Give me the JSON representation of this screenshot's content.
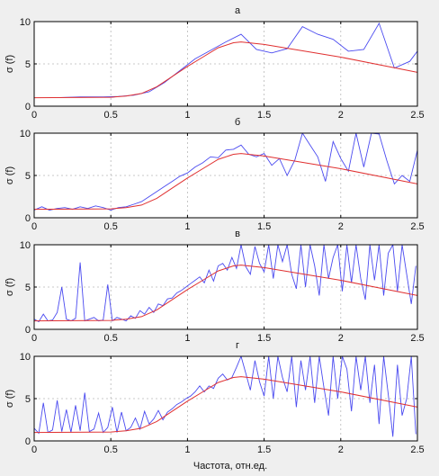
{
  "xlabel": "Частота, отн.ед.",
  "colors": {
    "measured": "#4a4af0",
    "model": "#e03030",
    "grid": "#b8b8b8",
    "axes_bg": "#ffffff",
    "figure_bg": "#efefef"
  },
  "chart_data": [
    {
      "type": "line",
      "title": "а",
      "ylabel": "σ (f)",
      "xlim": [
        0,
        2.5
      ],
      "ylim": [
        0,
        10
      ],
      "xticks": [
        0,
        0.5,
        1,
        1.5,
        2,
        2.5
      ],
      "yticks": [
        0,
        5,
        10
      ],
      "x_tick_labels": [
        "0",
        "0.5",
        "1",
        "1.5",
        "2",
        "2.5"
      ],
      "y_tick_labels": [
        "0",
        "5",
        "10"
      ],
      "grid": true,
      "series": [
        {
          "role": "measured",
          "x": [
            0.15,
            0.3,
            0.45,
            0.55,
            0.65,
            0.75,
            0.85,
            0.95,
            1.05,
            1.15,
            1.25,
            1.35,
            1.45,
            1.55,
            1.65,
            1.75,
            1.85,
            1.95,
            2.05,
            2.15,
            2.25,
            2.35,
            2.45,
            2.5
          ],
          "y": [
            1.0,
            1.1,
            1.1,
            1.15,
            1.3,
            1.7,
            2.8,
            4.2,
            5.6,
            6.6,
            7.6,
            8.5,
            6.7,
            6.3,
            6.8,
            9.4,
            8.5,
            7.9,
            6.5,
            6.7,
            9.8,
            4.5,
            5.3,
            6.5
          ]
        },
        {
          "role": "model",
          "x": [
            0,
            0.5,
            0.6,
            0.7,
            0.8,
            0.9,
            1.0,
            1.1,
            1.2,
            1.3,
            1.35,
            1.5,
            2.0,
            2.5
          ],
          "y": [
            1.0,
            1.05,
            1.2,
            1.5,
            2.3,
            3.5,
            4.7,
            5.8,
            6.9,
            7.5,
            7.6,
            7.3,
            5.8,
            4.0
          ]
        }
      ]
    },
    {
      "type": "line",
      "title": "б",
      "ylabel": "σ (f)",
      "xlim": [
        0,
        2.5
      ],
      "ylim": [
        0,
        10
      ],
      "xticks": [
        0,
        0.5,
        1,
        1.5,
        2,
        2.5
      ],
      "yticks": [
        0,
        5,
        10
      ],
      "x_tick_labels": [
        "0",
        "0.5",
        "1",
        "1.5",
        "2",
        "2.5"
      ],
      "y_tick_labels": [
        "0",
        "5",
        "10"
      ],
      "grid": true,
      "series": [
        {
          "role": "measured",
          "x": [
            0,
            0.05,
            0.1,
            0.15,
            0.2,
            0.25,
            0.3,
            0.35,
            0.4,
            0.45,
            0.5,
            0.55,
            0.6,
            0.65,
            0.7,
            0.75,
            0.8,
            0.85,
            0.9,
            0.95,
            1.0,
            1.05,
            1.1,
            1.15,
            1.2,
            1.25,
            1.3,
            1.35,
            1.4,
            1.45,
            1.5,
            1.55,
            1.6,
            1.65,
            1.7,
            1.75,
            1.8,
            1.85,
            1.9,
            1.95,
            2.0,
            2.05,
            2.1,
            2.15,
            2.2,
            2.25,
            2.3,
            2.35,
            2.4,
            2.45,
            2.5
          ],
          "y": [
            0.9,
            1.3,
            0.9,
            1.1,
            1.2,
            1.0,
            1.3,
            1.1,
            1.4,
            1.2,
            0.9,
            1.2,
            1.3,
            1.6,
            1.9,
            2.5,
            3.1,
            3.7,
            4.3,
            4.9,
            5.3,
            6.0,
            6.5,
            7.2,
            7.1,
            8.0,
            8.1,
            8.6,
            7.5,
            7.2,
            7.6,
            6.2,
            7.0,
            5.0,
            6.8,
            10.0,
            8.6,
            7.2,
            4.3,
            9.0,
            7.0,
            5.5,
            10.0,
            6.0,
            10.0,
            9.9,
            6.8,
            4.0,
            5.0,
            4.3,
            8.0
          ]
        },
        {
          "role": "model",
          "x": [
            0,
            0.5,
            0.6,
            0.7,
            0.8,
            0.9,
            1.0,
            1.1,
            1.2,
            1.3,
            1.35,
            1.5,
            2.0,
            2.5
          ],
          "y": [
            1.0,
            1.05,
            1.2,
            1.5,
            2.3,
            3.5,
            4.7,
            5.8,
            6.9,
            7.5,
            7.6,
            7.3,
            5.8,
            4.0
          ]
        }
      ]
    },
    {
      "type": "line",
      "title": "в",
      "ylabel": "σ (f)",
      "xlim": [
        0,
        2.5
      ],
      "ylim": [
        0,
        10
      ],
      "xticks": [
        0,
        0.5,
        1,
        1.5,
        2,
        2.5
      ],
      "yticks": [
        0,
        5,
        10
      ],
      "x_tick_labels": [
        "0",
        "0.5",
        "1",
        "1.5",
        "2",
        "2.5"
      ],
      "y_tick_labels": [
        "0",
        "5",
        "10"
      ],
      "grid": true,
      "series": [
        {
          "role": "measured",
          "x": [
            0,
            0.03,
            0.06,
            0.09,
            0.12,
            0.15,
            0.18,
            0.21,
            0.24,
            0.27,
            0.3,
            0.33,
            0.36,
            0.39,
            0.42,
            0.45,
            0.48,
            0.51,
            0.54,
            0.57,
            0.6,
            0.63,
            0.66,
            0.69,
            0.72,
            0.75,
            0.78,
            0.81,
            0.84,
            0.87,
            0.9,
            0.93,
            0.96,
            0.99,
            1.02,
            1.05,
            1.08,
            1.11,
            1.14,
            1.17,
            1.2,
            1.23,
            1.26,
            1.29,
            1.32,
            1.35,
            1.38,
            1.41,
            1.44,
            1.47,
            1.5,
            1.53,
            1.56,
            1.59,
            1.62,
            1.65,
            1.68,
            1.71,
            1.74,
            1.77,
            1.8,
            1.83,
            1.86,
            1.89,
            1.92,
            1.95,
            1.98,
            2.01,
            2.04,
            2.07,
            2.1,
            2.13,
            2.16,
            2.19,
            2.22,
            2.25,
            2.28,
            2.31,
            2.34,
            2.37,
            2.4,
            2.43,
            2.46,
            2.49
          ],
          "y": [
            1.2,
            0.9,
            1.8,
            1.0,
            1.1,
            2.0,
            5.0,
            1.2,
            1.0,
            1.3,
            7.9,
            1.0,
            1.2,
            1.4,
            1.0,
            1.1,
            5.3,
            1.0,
            1.4,
            1.2,
            1.0,
            1.6,
            1.3,
            2.2,
            1.8,
            2.6,
            2.0,
            3.0,
            2.8,
            3.6,
            3.7,
            4.3,
            4.6,
            5.0,
            5.4,
            5.8,
            6.2,
            5.5,
            7.0,
            5.7,
            7.5,
            7.8,
            7.0,
            8.5,
            7.2,
            10.0,
            7.4,
            6.5,
            9.8,
            7.8,
            6.8,
            10.0,
            6.0,
            10.0,
            8.0,
            10.0,
            6.5,
            4.8,
            10.0,
            5.0,
            10.0,
            7.5,
            4.0,
            10.0,
            6.0,
            8.5,
            10.0,
            4.5,
            10.0,
            5.5,
            10.0,
            6.0,
            3.5,
            10.0,
            5.8,
            10.0,
            4.0,
            9.0,
            10.0,
            4.5,
            10.0,
            6.5,
            3.0,
            7.5
          ]
        },
        {
          "role": "model",
          "x": [
            0,
            0.5,
            0.6,
            0.7,
            0.8,
            0.9,
            1.0,
            1.1,
            1.2,
            1.3,
            1.35,
            1.5,
            2.0,
            2.5
          ],
          "y": [
            1.0,
            1.05,
            1.2,
            1.5,
            2.3,
            3.5,
            4.7,
            5.8,
            6.9,
            7.5,
            7.6,
            7.3,
            5.8,
            4.0
          ]
        }
      ]
    },
    {
      "type": "line",
      "title": "г",
      "ylabel": "σ (f)",
      "xlim": [
        0,
        2.5
      ],
      "ylim": [
        0,
        10
      ],
      "xticks": [
        0,
        0.5,
        1,
        1.5,
        2,
        2.5
      ],
      "yticks": [
        0,
        5,
        10
      ],
      "x_tick_labels": [
        "0",
        "0.5",
        "1",
        "1.5",
        "2",
        "2.5"
      ],
      "y_tick_labels": [
        "0",
        "5",
        "10"
      ],
      "grid": true,
      "series": [
        {
          "role": "measured",
          "x": [
            0,
            0.03,
            0.06,
            0.09,
            0.12,
            0.15,
            0.18,
            0.21,
            0.24,
            0.27,
            0.3,
            0.33,
            0.36,
            0.39,
            0.42,
            0.45,
            0.48,
            0.51,
            0.54,
            0.57,
            0.6,
            0.63,
            0.66,
            0.69,
            0.72,
            0.75,
            0.78,
            0.81,
            0.84,
            0.87,
            0.9,
            0.93,
            0.96,
            0.99,
            1.02,
            1.05,
            1.08,
            1.11,
            1.14,
            1.17,
            1.2,
            1.23,
            1.26,
            1.29,
            1.32,
            1.35,
            1.38,
            1.41,
            1.44,
            1.47,
            1.5,
            1.53,
            1.56,
            1.59,
            1.62,
            1.65,
            1.68,
            1.71,
            1.74,
            1.77,
            1.8,
            1.83,
            1.86,
            1.89,
            1.92,
            1.95,
            1.98,
            2.01,
            2.04,
            2.07,
            2.1,
            2.13,
            2.16,
            2.19,
            2.22,
            2.25,
            2.28,
            2.31,
            2.34,
            2.37,
            2.4,
            2.43,
            2.46,
            2.49
          ],
          "y": [
            1.5,
            0.9,
            4.5,
            1.0,
            1.3,
            4.8,
            1.1,
            3.7,
            1.0,
            4.2,
            1.2,
            5.7,
            1.1,
            1.4,
            3.3,
            1.0,
            1.6,
            4.0,
            1.0,
            3.4,
            1.2,
            1.6,
            2.7,
            1.4,
            3.5,
            2.0,
            2.6,
            3.6,
            2.5,
            3.4,
            3.8,
            4.3,
            4.6,
            5.0,
            5.3,
            5.8,
            6.5,
            5.8,
            6.5,
            6.2,
            7.4,
            7.9,
            7.2,
            7.5,
            8.7,
            10.0,
            8.0,
            6.0,
            9.5,
            7.0,
            5.3,
            10.0,
            5.0,
            10.0,
            7.5,
            5.8,
            10.0,
            4.0,
            9.5,
            6.0,
            10.0,
            4.5,
            10.0,
            6.3,
            3.0,
            10.0,
            5.0,
            10.0,
            8.5,
            3.5,
            10.0,
            6.0,
            10.0,
            4.5,
            9.0,
            2.0,
            10.0,
            5.5,
            0.5,
            9.0,
            3.0,
            5.0,
            10.0,
            0.8
          ]
        },
        {
          "role": "model",
          "x": [
            0,
            0.5,
            0.6,
            0.7,
            0.8,
            0.9,
            1.0,
            1.1,
            1.2,
            1.3,
            1.35,
            1.5,
            2.0,
            2.5
          ],
          "y": [
            1.0,
            1.05,
            1.2,
            1.5,
            2.3,
            3.5,
            4.7,
            5.8,
            6.9,
            7.5,
            7.6,
            7.3,
            5.8,
            4.0
          ]
        }
      ]
    }
  ]
}
